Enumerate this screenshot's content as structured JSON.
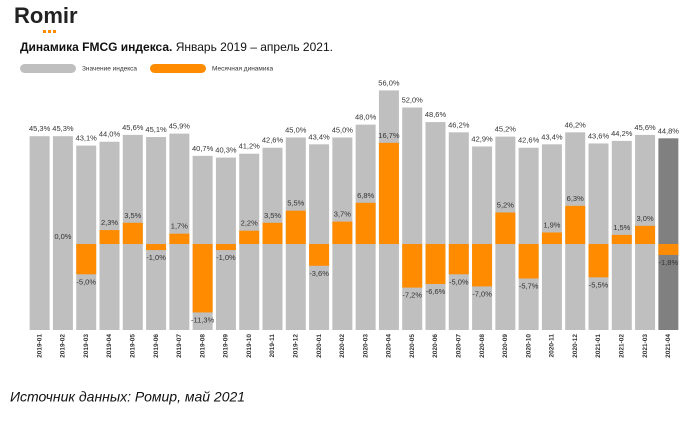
{
  "logo": "Romir",
  "source": "Источник данных: Ромир, май 2021",
  "chart_data": {
    "type": "bar",
    "title": "Динамика FMCG индекса.",
    "subtitle": "Январь 2019 – апрель 2021.",
    "categories": [
      "2019-01",
      "2019-02",
      "2019-03",
      "2019-04",
      "2019-05",
      "2019-06",
      "2019-07",
      "2019-08",
      "2019-09",
      "2019-10",
      "2019-11",
      "2019-12",
      "2020-01",
      "2020-02",
      "2020-03",
      "2020-04",
      "2020-05",
      "2020-06",
      "2020-07",
      "2020-08",
      "2020-09",
      "2020-10",
      "2020-11",
      "2020-12",
      "2021-01",
      "2021-02",
      "2021-03",
      "2021-04"
    ],
    "ylim": [
      0,
      59.6
    ],
    "y2lim": [
      -14.2,
      27.9
    ],
    "legend": "top-left",
    "series": [
      {
        "name": "Значение индекса",
        "color": "#bfbfbf",
        "colors": [
          "#bfbfbf",
          "#bfbfbf",
          "#bfbfbf",
          "#bfbfbf",
          "#bfbfbf",
          "#bfbfbf",
          "#bfbfbf",
          "#bfbfbf",
          "#bfbfbf",
          "#bfbfbf",
          "#bfbfbf",
          "#bfbfbf",
          "#bfbfbf",
          "#bfbfbf",
          "#bfbfbf",
          "#bfbfbf",
          "#bfbfbf",
          "#bfbfbf",
          "#bfbfbf",
          "#bfbfbf",
          "#bfbfbf",
          "#bfbfbf",
          "#bfbfbf",
          "#bfbfbf",
          "#bfbfbf",
          "#bfbfbf",
          "#bfbfbf",
          "#808080"
        ],
        "values": [
          45.3,
          45.3,
          43.1,
          44.0,
          45.6,
          45.1,
          45.9,
          40.7,
          40.3,
          41.2,
          42.6,
          45.0,
          43.4,
          45.0,
          48.0,
          56.0,
          52.0,
          48.6,
          46.2,
          42.9,
          45.2,
          42.6,
          43.4,
          46.2,
          43.6,
          44.2,
          45.6,
          44.8
        ],
        "value_labels": [
          "45,3%",
          "45,3%",
          "43,1%",
          "44,0%",
          "45,6%",
          "45,1%",
          "45,9%",
          "40,7%",
          "40,3%",
          "41,2%",
          "42,6%",
          "45,0%",
          "43,4%",
          "45,0%",
          "48,0%",
          "56,0%",
          "52,0%",
          "48,6%",
          "46,2%",
          "42,9%",
          "45,2%",
          "42,6%",
          "43,4%",
          "46,2%",
          "43,6%",
          "44,2%",
          "45,6%",
          "44,8%"
        ]
      },
      {
        "name": "Месячная динамика",
        "color": "#ff8c00",
        "axis": "y2",
        "values": [
          null,
          0.0,
          -5.0,
          2.3,
          3.5,
          -1.0,
          1.7,
          -11.3,
          -1.0,
          2.2,
          3.5,
          5.5,
          -3.6,
          3.7,
          6.8,
          16.7,
          -7.2,
          -6.6,
          -5.0,
          -7.0,
          5.2,
          -5.7,
          1.9,
          6.3,
          -5.5,
          1.5,
          3.0,
          -1.8
        ],
        "value_labels": [
          null,
          "0,0%",
          "-5,0%",
          "2,3%",
          "3,5%",
          "-1,0%",
          "1,7%",
          "-11,3%",
          "-1,0%",
          "2,2%",
          "3,5%",
          "5,5%",
          "-3,6%",
          "3,7%",
          "6,8%",
          "16,7%",
          "-7,2%",
          "-6,6%",
          "-5,0%",
          "-7,0%",
          "5,2%",
          "-5,7%",
          "1,9%",
          "6,3%",
          "-5,5%",
          "1,5%",
          "3,0%",
          "-1,8%"
        ]
      }
    ]
  }
}
